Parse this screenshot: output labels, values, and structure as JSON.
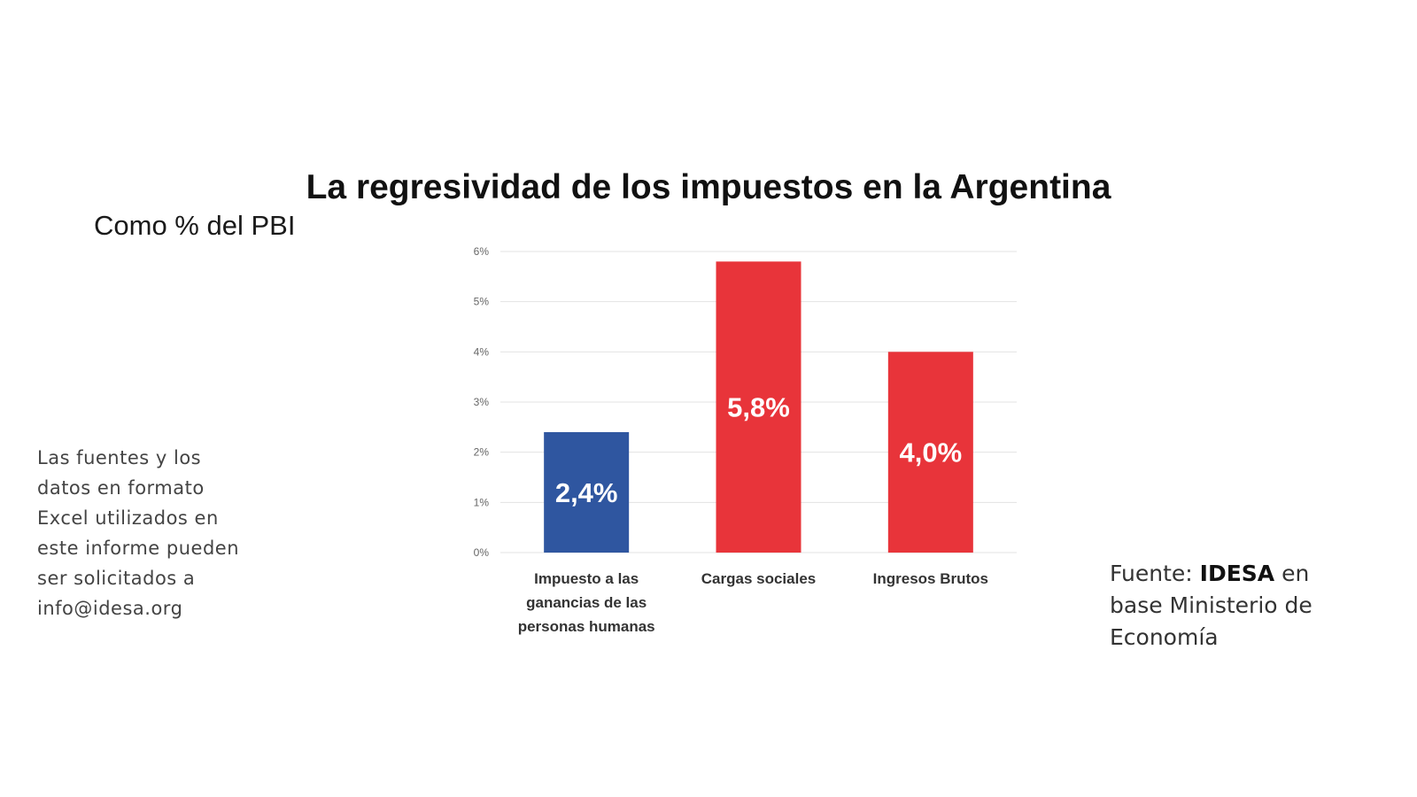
{
  "title": "La regresividad de los impuestos en la Argentina",
  "subtitle": "Como % del PBI",
  "side_note": [
    "Las fuentes y los",
    "datos en formato",
    "Excel utilizados en",
    "este informe pueden",
    "ser solicitados a",
    "info@idesa.org"
  ],
  "source": {
    "prefix": "Fuente:",
    "brand": "IDESA",
    "middle": "en",
    "line2": "base Ministerio de",
    "line3": "Economía"
  },
  "colors": {
    "blue": "#2f56a0",
    "red": "#e8343a",
    "grid": "#e3e3e3",
    "axis_text": "#666666",
    "category_text": "#333333"
  },
  "chart_data": {
    "type": "bar",
    "categories": [
      [
        "Impuesto a las",
        "ganancias de las",
        "personas humanas"
      ],
      [
        "Cargas sociales"
      ],
      [
        "Ingresos Brutos"
      ]
    ],
    "values": [
      2.4,
      5.8,
      4.0
    ],
    "data_labels": [
      "2,4%",
      "5,8%",
      "4,0%"
    ],
    "bar_colors": [
      "#2f56a0",
      "#e8343a",
      "#e8343a"
    ],
    "yticks": [
      "0%",
      "1%",
      "2%",
      "3%",
      "4%",
      "5%",
      "6%"
    ],
    "ylim": [
      0,
      6
    ],
    "grid": true,
    "legend": "none"
  }
}
